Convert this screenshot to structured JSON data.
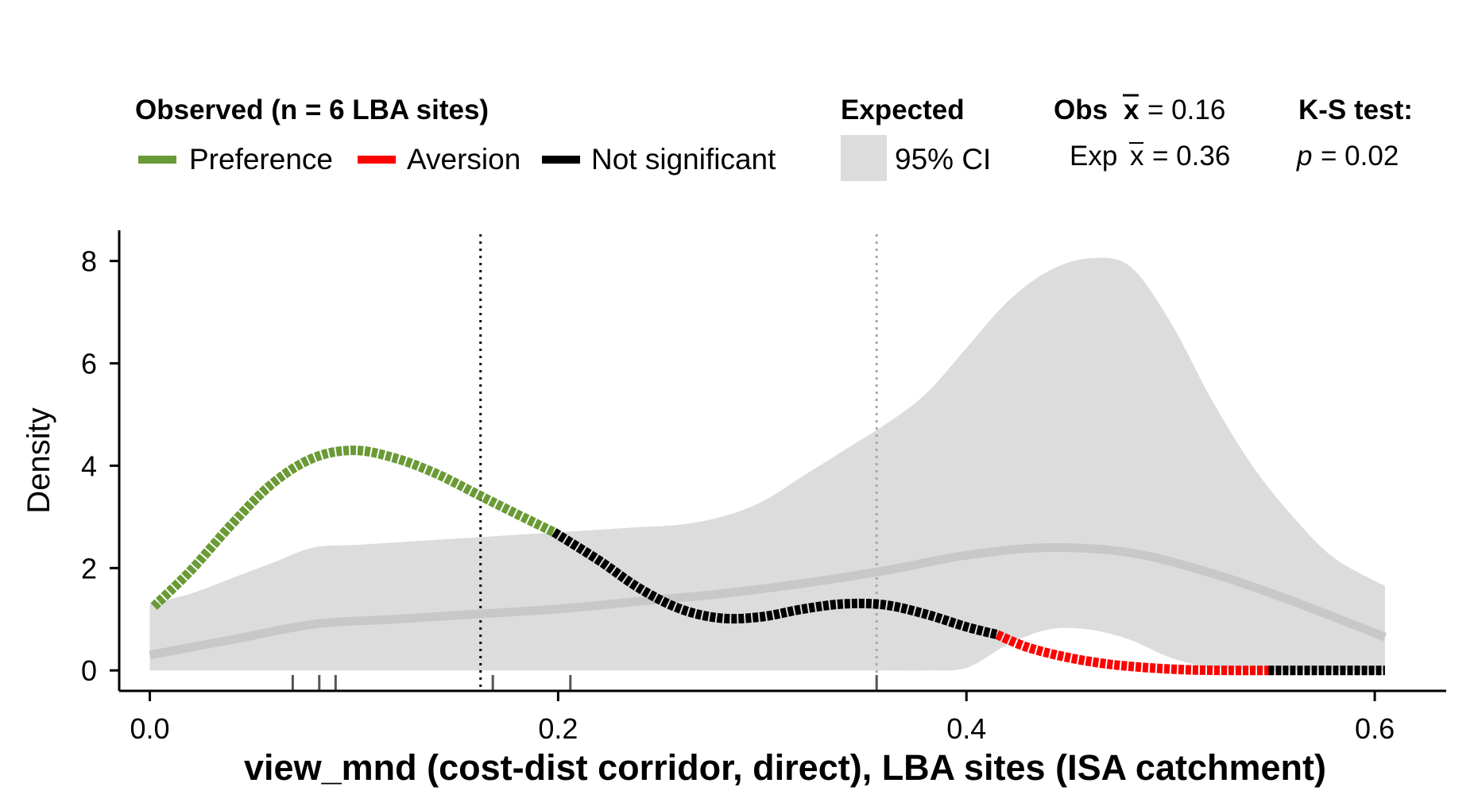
{
  "legend": {
    "observed_title": "Observed (n = 6 LBA sites)",
    "items": [
      {
        "label": "Preference",
        "color": "#6a9a35"
      },
      {
        "label": "Aversion",
        "color": "#ff0000"
      },
      {
        "label": "Not significant",
        "color": "#000000"
      }
    ],
    "expected_title": "Expected",
    "ci_label": "95% CI",
    "ci_color": "#dcdcdc",
    "obs_mean_label": "Obs",
    "obs_mean_value": "= 0.16",
    "exp_mean_label": "Exp",
    "exp_mean_value": "= 0.36",
    "mean_symbol": "x",
    "ks_title": "K-S test:",
    "ks_p_symbol": "p",
    "ks_p_value": "= 0.02"
  },
  "chart_data": {
    "type": "line",
    "xlabel": "view_mnd (cost-dist corridor, direct), LBA sites (ISA catchment)",
    "ylabel": "Density",
    "xlim": [
      -0.015,
      0.635
    ],
    "ylim": [
      -0.4,
      8.6
    ],
    "xticks": [
      0.0,
      0.2,
      0.4,
      0.6
    ],
    "xtick_labels": [
      "0.0",
      "0.2",
      "0.4",
      "0.6"
    ],
    "yticks": [
      0,
      2,
      4,
      6,
      8
    ],
    "ytick_labels": [
      "0",
      "2",
      "4",
      "6",
      "8"
    ],
    "grid": false,
    "obs_mean": 0.162,
    "exp_mean": 0.356,
    "rug": [
      0.07,
      0.083,
      0.091,
      0.168,
      0.206,
      0.356
    ],
    "ci_band": {
      "x": [
        0.0,
        0.02,
        0.04,
        0.06,
        0.08,
        0.1,
        0.12,
        0.14,
        0.16,
        0.18,
        0.2,
        0.22,
        0.24,
        0.26,
        0.28,
        0.3,
        0.32,
        0.34,
        0.36,
        0.38,
        0.4,
        0.42,
        0.44,
        0.46,
        0.48,
        0.5,
        0.52,
        0.54,
        0.56,
        0.58,
        0.605
      ],
      "upper": [
        1.3,
        1.5,
        1.8,
        2.1,
        2.4,
        2.45,
        2.5,
        2.55,
        2.6,
        2.65,
        2.7,
        2.75,
        2.8,
        2.85,
        3.0,
        3.3,
        3.8,
        4.3,
        4.8,
        5.4,
        6.3,
        7.2,
        7.8,
        8.05,
        7.9,
        6.8,
        5.3,
        4.0,
        3.0,
        2.2,
        1.65
      ],
      "lower": [
        0,
        0,
        0,
        0,
        0,
        0,
        0,
        0,
        0,
        0,
        0,
        0,
        0,
        0,
        0,
        0,
        0,
        0,
        0,
        0,
        0.05,
        0.5,
        0.8,
        0.8,
        0.6,
        0.25,
        0.05,
        0,
        0,
        0,
        0
      ]
    },
    "series": [
      {
        "name": "Expected",
        "color": "#c8c8c8",
        "x": [
          0.0,
          0.04,
          0.08,
          0.12,
          0.16,
          0.2,
          0.24,
          0.28,
          0.32,
          0.36,
          0.4,
          0.44,
          0.48,
          0.52,
          0.56,
          0.605
        ],
        "y": [
          0.3,
          0.6,
          0.9,
          1.0,
          1.1,
          1.2,
          1.35,
          1.5,
          1.7,
          1.95,
          2.25,
          2.4,
          2.3,
          1.9,
          1.35,
          0.65
        ]
      },
      {
        "name": "Preference",
        "color": "#6a9a35",
        "x": [
          0.002,
          0.02,
          0.04,
          0.06,
          0.08,
          0.1,
          0.12,
          0.14,
          0.16,
          0.18,
          0.198
        ],
        "y": [
          1.25,
          1.95,
          2.85,
          3.65,
          4.15,
          4.3,
          4.15,
          3.85,
          3.45,
          3.05,
          2.7
        ]
      },
      {
        "name": "Not significant",
        "color": "#000000",
        "x": [
          0.198,
          0.22,
          0.24,
          0.26,
          0.28,
          0.3,
          0.32,
          0.34,
          0.36,
          0.38,
          0.4,
          0.415
        ],
        "y": [
          2.7,
          2.15,
          1.6,
          1.2,
          1.02,
          1.05,
          1.2,
          1.3,
          1.28,
          1.1,
          0.85,
          0.7
        ]
      },
      {
        "name": "Aversion",
        "color": "#ff0000",
        "x": [
          0.415,
          0.43,
          0.45,
          0.47,
          0.49,
          0.51,
          0.53,
          0.548
        ],
        "y": [
          0.7,
          0.45,
          0.25,
          0.12,
          0.05,
          0.01,
          0.0,
          0.0
        ]
      },
      {
        "name": "Not significant",
        "color": "#000000",
        "x": [
          0.548,
          0.58,
          0.605
        ],
        "y": [
          0.0,
          0.0,
          0.0
        ]
      }
    ]
  }
}
